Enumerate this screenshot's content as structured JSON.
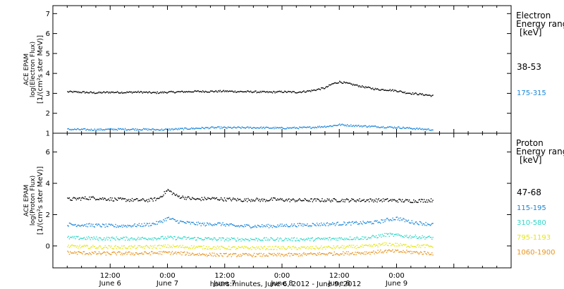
{
  "chart_data": [
    {
      "type": "scatter",
      "panel": "electron",
      "ylabel": [
        "ACE EPAM",
        "log(Electron Flux)",
        "[1/(cm²s ster MeV)]"
      ],
      "ylim": [
        1,
        7.4
      ],
      "yticks": [
        1,
        2,
        3,
        4,
        5,
        6,
        7
      ],
      "xlim": [
        0,
        96
      ],
      "legend_title": [
        "Electron",
        "Energy ranges",
        "[keV]"
      ],
      "legend_placement": "right",
      "series": [
        {
          "name": "38-53",
          "color": "#000000",
          "x": [
            3,
            6,
            9,
            12,
            15,
            18,
            21,
            24,
            27,
            30,
            33,
            36,
            39,
            42,
            45,
            48,
            51,
            54,
            57,
            58.5,
            60,
            62,
            64,
            66,
            68,
            70,
            72,
            74,
            76,
            78,
            79.5
          ],
          "y": [
            3.1,
            3.08,
            3.05,
            3.08,
            3.07,
            3.09,
            3.05,
            3.08,
            3.1,
            3.12,
            3.12,
            3.13,
            3.11,
            3.1,
            3.08,
            3.1,
            3.08,
            3.15,
            3.3,
            3.5,
            3.6,
            3.5,
            3.4,
            3.3,
            3.22,
            3.2,
            3.15,
            3.05,
            3.0,
            2.95,
            2.9
          ]
        },
        {
          "name": "175-315",
          "color": "#1a86d9",
          "x": [
            3,
            8,
            13,
            18,
            23,
            28,
            33,
            38,
            43,
            48,
            53,
            58,
            60,
            63,
            68,
            73,
            78,
            79.5
          ],
          "y": [
            1.22,
            1.2,
            1.22,
            1.22,
            1.2,
            1.25,
            1.3,
            1.3,
            1.3,
            1.28,
            1.3,
            1.38,
            1.45,
            1.4,
            1.35,
            1.3,
            1.22,
            1.2
          ]
        }
      ]
    },
    {
      "type": "scatter",
      "panel": "proton",
      "ylabel": [
        "ACE EPAM",
        "log(Proton Flux)",
        "[1/(cm²s ster MeV)]"
      ],
      "ylim": [
        -1.4,
        7.2
      ],
      "yticks": [
        0,
        2,
        4,
        6
      ],
      "xlim": [
        0,
        96
      ],
      "legend_title": [
        "Proton",
        "Energy ranges",
        "[keV]"
      ],
      "legend_placement": "right",
      "series": [
        {
          "name": "47-68",
          "color": "#000000",
          "x": [
            3,
            8,
            13,
            18,
            20,
            22,
            24,
            26,
            28,
            30,
            32,
            34,
            36,
            38,
            40,
            42,
            44,
            46,
            50,
            55,
            60,
            65,
            70,
            75,
            79.5
          ],
          "y": [
            3.0,
            3.1,
            3.0,
            2.95,
            2.95,
            3.05,
            3.6,
            3.2,
            3.1,
            3.0,
            3.05,
            3.05,
            3.0,
            3.0,
            2.95,
            3.0,
            2.95,
            3.0,
            2.95,
            2.95,
            2.95,
            2.95,
            2.95,
            2.9,
            2.95
          ]
        },
        {
          "name": "115-195",
          "color": "#1a86d9",
          "x": [
            3,
            8,
            13,
            18,
            20,
            22,
            24,
            26,
            28,
            30,
            32,
            34,
            36,
            38,
            40,
            42,
            44,
            46,
            50,
            55,
            60,
            65,
            68,
            70,
            72,
            75,
            79.5
          ],
          "y": [
            1.4,
            1.35,
            1.3,
            1.35,
            1.4,
            1.5,
            1.8,
            1.6,
            1.5,
            1.45,
            1.4,
            1.45,
            1.4,
            1.3,
            1.3,
            1.3,
            1.3,
            1.3,
            1.35,
            1.4,
            1.45,
            1.5,
            1.55,
            1.7,
            1.8,
            1.55,
            1.4
          ]
        },
        {
          "name": "310-580",
          "color": "#2dd6c8",
          "x": [
            3,
            10,
            18,
            24,
            30,
            36,
            42,
            48,
            54,
            60,
            66,
            70,
            74,
            79.5
          ],
          "y": [
            0.55,
            0.5,
            0.5,
            0.55,
            0.5,
            0.45,
            0.45,
            0.45,
            0.45,
            0.5,
            0.55,
            0.75,
            0.65,
            0.55
          ]
        },
        {
          "name": "795-1193",
          "color": "#e4e61a",
          "x": [
            3,
            10,
            18,
            24,
            30,
            36,
            42,
            48,
            54,
            60,
            66,
            70,
            74,
            79.5
          ],
          "y": [
            0.0,
            -0.05,
            -0.05,
            0.0,
            -0.05,
            -0.1,
            -0.1,
            -0.1,
            -0.1,
            -0.05,
            0.0,
            0.15,
            0.05,
            0.0
          ]
        },
        {
          "name": "1060-1900",
          "color": "#e8941f",
          "x": [
            3,
            10,
            18,
            24,
            30,
            36,
            42,
            48,
            54,
            60,
            66,
            70,
            74,
            79.5
          ],
          "y": [
            -0.4,
            -0.45,
            -0.45,
            -0.4,
            -0.5,
            -0.55,
            -0.55,
            -0.55,
            -0.5,
            -0.45,
            -0.4,
            -0.3,
            -0.35,
            -0.45
          ]
        }
      ]
    }
  ],
  "x_axis": {
    "ticks": [
      {
        "x": 12,
        "time": "12:00",
        "date": "June 6"
      },
      {
        "x": 24,
        "time": "0:00",
        "date": "June 7"
      },
      {
        "x": 36,
        "time": "12:00",
        "date": "June 7"
      },
      {
        "x": 48,
        "time": "0:00",
        "date": "June 8"
      },
      {
        "x": 60,
        "time": "12:00",
        "date": "June 8"
      },
      {
        "x": 72,
        "time": "0:00",
        "date": "June 9"
      }
    ],
    "xlabel": "hours:minutes, June  6, 2012 - June  9, 2012"
  },
  "colors": {
    "axis": "#000000",
    "background": "#ffffff"
  }
}
